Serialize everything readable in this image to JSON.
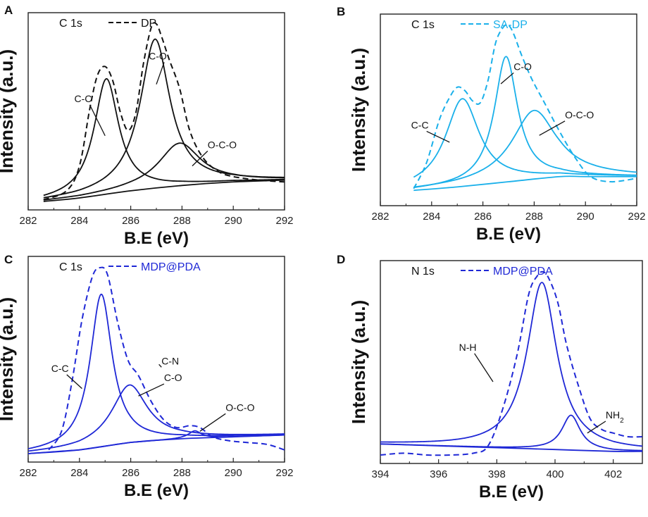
{
  "figure": {
    "panels_count": 4
  },
  "chart_data": [
    {
      "id": "A",
      "type": "line",
      "panel_label": "A",
      "spectrum_label": "C 1s",
      "legend": "DP",
      "color": "#111111",
      "xlabel": "B.E (eV)",
      "ylabel": "Intensity (a.u.)",
      "xlim": [
        282,
        292
      ],
      "xticks": [
        "282",
        "284",
        "286",
        "288",
        "290",
        "292"
      ],
      "ylim": [
        0,
        1
      ],
      "series": [
        {
          "name": "DP",
          "style": "dashed",
          "x": [
            282.6,
            283.5,
            284.0,
            284.4,
            284.7,
            285.0,
            285.3,
            285.6,
            285.9,
            286.2,
            286.5,
            286.8,
            287.0,
            287.2,
            287.5,
            287.9,
            288.3,
            288.8,
            289.4,
            290.0,
            291.0,
            292.0
          ],
          "y": [
            0.01,
            0.06,
            0.2,
            0.52,
            0.71,
            0.76,
            0.68,
            0.5,
            0.4,
            0.5,
            0.78,
            0.98,
            1.0,
            0.93,
            0.8,
            0.64,
            0.4,
            0.25,
            0.17,
            0.14,
            0.12,
            0.11
          ]
        },
        {
          "name": "C-C",
          "style": "solid",
          "peak": {
            "center": 285.05,
            "height": 0.65,
            "width": 0.58
          }
        },
        {
          "name": "C-O",
          "style": "solid",
          "peak": {
            "center": 286.95,
            "height": 0.84,
            "width": 0.7
          }
        },
        {
          "name": "O-C-O",
          "style": "solid",
          "peak": {
            "center": 287.9,
            "height": 0.24,
            "width": 1.0
          }
        },
        {
          "name": "background",
          "style": "solid",
          "x": [
            282.6,
            284,
            286,
            288,
            290,
            292
          ],
          "y": [
            0.0,
            0.02,
            0.06,
            0.09,
            0.11,
            0.12
          ]
        }
      ],
      "annotations": [
        {
          "text": "C-C",
          "x": 284.6,
          "y": 0.41
        },
        {
          "text": "C-O",
          "x": 286.7,
          "y": 0.69
        },
        {
          "text": "O-C-O",
          "x": 287.6,
          "y": 0.23
        }
      ]
    },
    {
      "id": "B",
      "type": "line",
      "panel_label": "B",
      "spectrum_label": "C 1s",
      "legend": "SA-DP",
      "color": "#1ab0ea",
      "xlabel": "B.E (eV)",
      "ylabel": "Intensity (a.u.)",
      "xlim": [
        282,
        292
      ],
      "xticks": [
        "282",
        "284",
        "286",
        "288",
        "290",
        "292"
      ],
      "ylim": [
        0,
        1
      ],
      "series": [
        {
          "name": "SA-DP",
          "style": "dashed",
          "x": [
            283.3,
            283.8,
            284.3,
            284.7,
            285.0,
            285.3,
            285.6,
            285.9,
            286.2,
            286.5,
            286.8,
            287.0,
            287.2,
            287.5,
            287.9,
            288.4,
            289.0,
            289.6,
            290.2,
            291.0,
            292.0
          ],
          "y": [
            0.05,
            0.2,
            0.45,
            0.58,
            0.64,
            0.62,
            0.56,
            0.55,
            0.68,
            0.9,
            0.99,
            1.0,
            0.95,
            0.83,
            0.69,
            0.55,
            0.38,
            0.23,
            0.12,
            0.09,
            0.11
          ]
        },
        {
          "name": "C-C",
          "style": "solid",
          "peak": {
            "center": 285.2,
            "height": 0.51,
            "width": 0.8
          }
        },
        {
          "name": "C-O",
          "style": "solid",
          "peak": {
            "center": 286.9,
            "height": 0.73,
            "width": 0.55
          }
        },
        {
          "name": "O-C-O",
          "style": "solid",
          "peak": {
            "center": 288.0,
            "height": 0.4,
            "width": 1.05
          }
        },
        {
          "name": "background",
          "style": "solid",
          "x": [
            283.3,
            285,
            287,
            289,
            290,
            292
          ],
          "y": [
            0.04,
            0.06,
            0.09,
            0.12,
            0.12,
            0.12
          ]
        }
      ],
      "annotations": [
        {
          "text": "C-C",
          "x": 284.6,
          "y": 0.38
        },
        {
          "text": "C-O",
          "x": 287.0,
          "y": 0.7
        },
        {
          "text": "O-C-O",
          "x": 288.7,
          "y": 0.4
        }
      ]
    },
    {
      "id": "C",
      "type": "line",
      "panel_label": "C",
      "spectrum_label": "C 1s",
      "legend": "MDP@PDA",
      "color": "#1f28d6",
      "xlabel": "B.E (eV)",
      "ylabel": "Intensity (a.u.)",
      "xlim": [
        282,
        292
      ],
      "xticks": [
        "282",
        "284",
        "286",
        "288",
        "290",
        "292"
      ],
      "ylim": [
        0,
        1
      ],
      "series": [
        {
          "name": "MDP@PDA",
          "style": "dashed",
          "x": [
            282.8,
            283.3,
            283.7,
            284.1,
            284.5,
            284.8,
            285.1,
            285.5,
            285.9,
            286.3,
            286.8,
            287.3,
            287.8,
            288.3,
            288.7,
            289.2,
            289.8,
            290.5,
            291.3,
            292.0
          ],
          "y": [
            0.02,
            0.12,
            0.38,
            0.72,
            0.95,
            1.0,
            0.96,
            0.7,
            0.5,
            0.42,
            0.28,
            0.18,
            0.14,
            0.15,
            0.14,
            0.09,
            0.07,
            0.06,
            0.05,
            0.02
          ]
        },
        {
          "name": "C-C",
          "style": "solid",
          "peak": {
            "center": 284.85,
            "height": 0.82,
            "width": 0.52
          }
        },
        {
          "name": "C-N/C-O",
          "style": "solid",
          "peak": {
            "center": 285.95,
            "height": 0.31,
            "width": 0.85
          }
        },
        {
          "name": "O-C-O",
          "style": "solid",
          "peak": {
            "center": 288.5,
            "height": 0.04,
            "width": 0.3
          }
        },
        {
          "name": "background",
          "style": "solid",
          "x": [
            282.0,
            284,
            286,
            288,
            290,
            292
          ],
          "y": [
            0.0,
            0.02,
            0.06,
            0.08,
            0.09,
            0.1
          ]
        }
      ],
      "annotations": [
        {
          "text": "C-C",
          "x": 283.3,
          "y": 0.42
        },
        {
          "text": "C-N",
          "x": 286.5,
          "y": 0.47
        },
        {
          "text": "C-O",
          "x": 286.5,
          "y": 0.38
        },
        {
          "text": "O-C-O",
          "x": 289.2,
          "y": 0.2
        }
      ]
    },
    {
      "id": "D",
      "type": "line",
      "panel_label": "D",
      "spectrum_label": "N 1s",
      "legend": "MDP@PDA",
      "color": "#1f28d6",
      "xlabel": "B.E (eV)",
      "ylabel": "Intensity (a.u.)",
      "xlim": [
        394,
        403
      ],
      "xticks": [
        "394",
        "396",
        "398",
        "400",
        "402"
      ],
      "ylim": [
        0,
        1
      ],
      "series": [
        {
          "name": "MDP@PDA",
          "style": "dashed",
          "x": [
            394.0,
            394.8,
            395.6,
            396.4,
            397.2,
            397.7,
            398.2,
            398.7,
            399.1,
            399.4,
            399.6,
            399.8,
            400.1,
            400.4,
            400.8,
            401.2,
            401.6,
            402.0,
            402.5,
            403.0
          ],
          "y": [
            0.0,
            0.01,
            0.0,
            0.0,
            0.01,
            0.05,
            0.25,
            0.55,
            0.88,
            0.98,
            1.0,
            0.96,
            0.83,
            0.6,
            0.38,
            0.2,
            0.14,
            0.12,
            0.1,
            0.1
          ]
        },
        {
          "name": "N-H",
          "style": "solid",
          "peak": {
            "center": 399.55,
            "height": 0.91,
            "width": 0.62
          }
        },
        {
          "name": "NH2",
          "style": "solid",
          "peak": {
            "center": 400.55,
            "height": 0.19,
            "width": 0.38
          }
        },
        {
          "name": "background",
          "style": "solid",
          "x": [
            394.0,
            396,
            398,
            400,
            402,
            403
          ],
          "y": [
            0.06,
            0.05,
            0.04,
            0.03,
            0.02,
            0.02
          ]
        }
      ],
      "annotations": [
        {
          "text": "N-H",
          "x": 398.0,
          "y": 0.54
        },
        {
          "text": "NH2",
          "x": 401.4,
          "y": 0.18
        }
      ]
    }
  ]
}
